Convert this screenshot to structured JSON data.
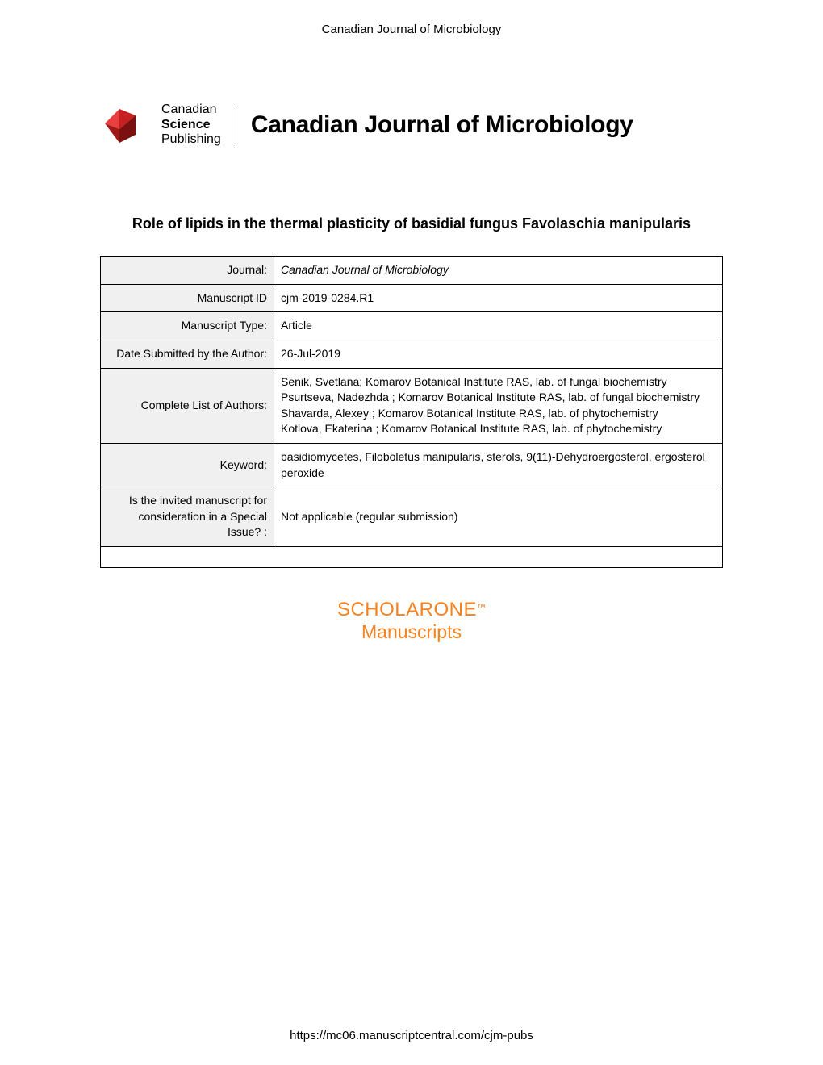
{
  "header": {
    "journal_name": "Canadian Journal of Microbiology"
  },
  "logo": {
    "publisher_line1": "Canadian",
    "publisher_line2": "Science",
    "publisher_line3": "Publishing",
    "journal_title": "Canadian Journal of Microbiology",
    "colors": {
      "logo_red_dark": "#a01818",
      "logo_red_mid": "#c72020",
      "logo_red_light": "#e84040"
    }
  },
  "article": {
    "title": "Role of lipids in the thermal plasticity of basidial fungus Favolaschia manipularis"
  },
  "table": {
    "rows": [
      {
        "label": "Journal:",
        "value": "Canadian Journal of Microbiology",
        "italic": true
      },
      {
        "label": "Manuscript ID",
        "value": "cjm-2019-0284.R1",
        "italic": false
      },
      {
        "label": "Manuscript Type:",
        "value": "Article",
        "italic": false
      },
      {
        "label": "Date Submitted by the Author:",
        "value": "26-Jul-2019",
        "italic": false
      },
      {
        "label": "Complete List of Authors:",
        "value": "Senik, Svetlana; Komarov Botanical Institute RAS, lab. of fungal biochemistry\nPsurtseva, Nadezhda ; Komarov Botanical Institute RAS, lab. of fungal biochemistry\nShavarda, Alexey ; Komarov Botanical Institute RAS, lab. of phytochemistry\nKotlova, Ekaterina ; Komarov Botanical Institute RAS, lab. of phytochemistry",
        "italic": false
      },
      {
        "label": "Keyword:",
        "value": "basidiomycetes, Filoboletus manipularis, sterols, 9(11)-Dehydroergosterol, ergosterol peroxide",
        "italic": false
      },
      {
        "label": "Is the invited manuscript for consideration in a Special Issue? :",
        "value": "Not applicable (regular submission)",
        "italic": false
      }
    ]
  },
  "scholarone": {
    "line1": "SCHOLARONE",
    "tm": "™",
    "line2": "Manuscripts",
    "color": "#f58220"
  },
  "footer": {
    "url": "https://mc06.manuscriptcentral.com/cjm-pubs"
  }
}
